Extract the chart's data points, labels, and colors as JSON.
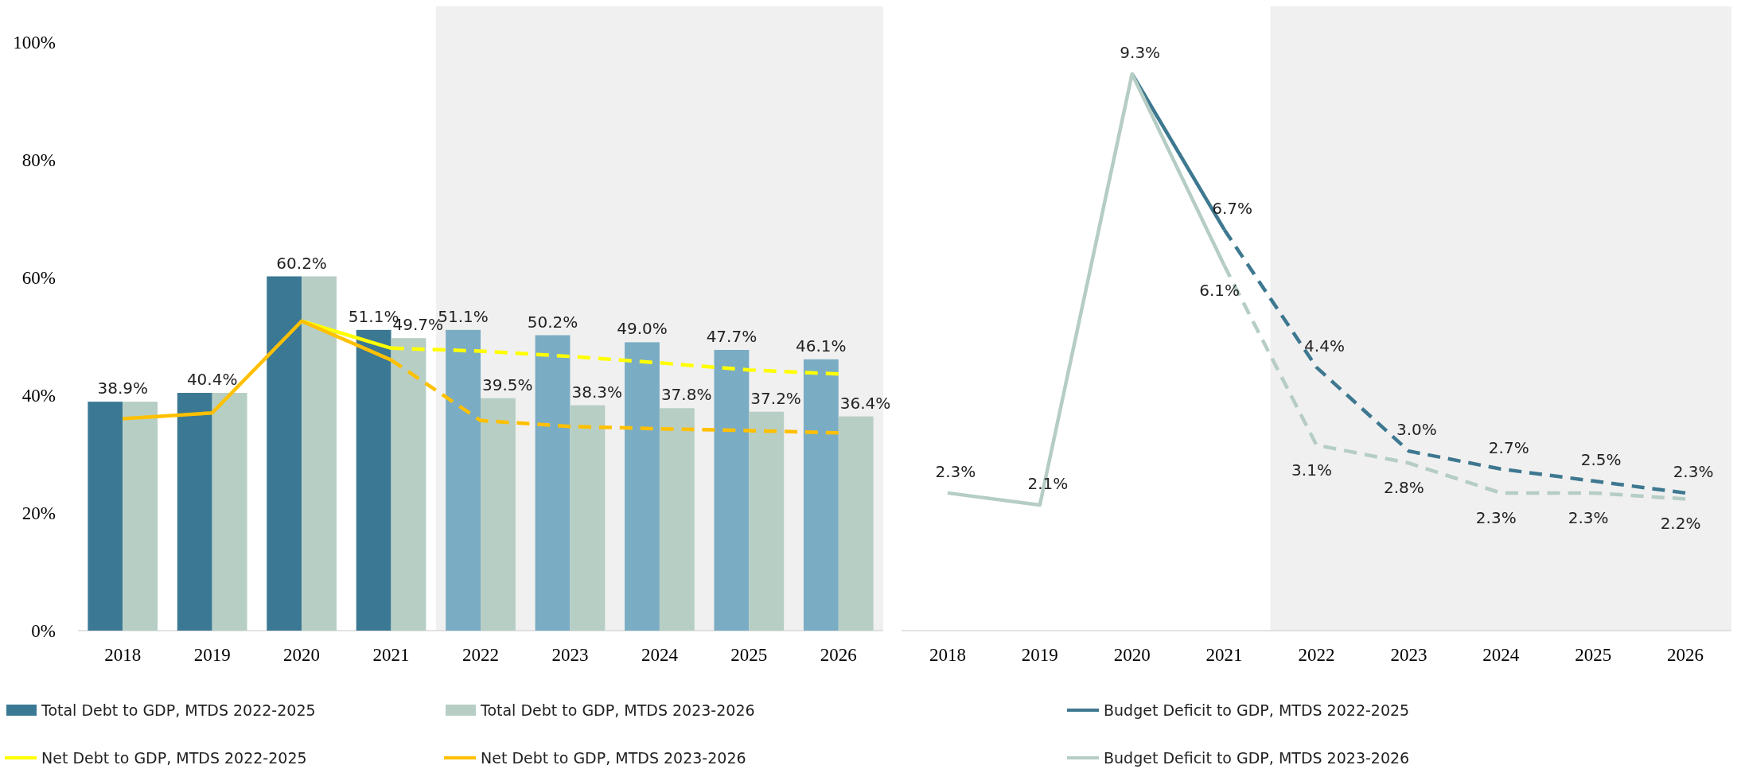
{
  "chart_data": [
    {
      "type": "bar",
      "categories": [
        "2018",
        "2019",
        "2020",
        "2021",
        "2022",
        "2023",
        "2024",
        "2025",
        "2026"
      ],
      "series": [
        {
          "name": "Total Debt to GDP, MTDS 2022-2025",
          "colors": [
            "#3b7893",
            "#3b7893",
            "#3b7893",
            "#3b7893",
            "#7aacc4",
            "#7aacc4",
            "#7aacc4",
            "#7aacc4",
            "#7aacc4"
          ],
          "values": [
            38.9,
            40.4,
            60.2,
            51.1,
            51.1,
            50.2,
            49.0,
            47.7,
            46.1
          ],
          "value_labels": [
            "38.9%",
            "40.4%",
            "60.2%",
            "51.1%",
            "51.1%",
            "50.2%",
            "49.0%",
            "47.7%",
            "46.1%"
          ]
        },
        {
          "name": "Total Debt to GDP, MTDS 2023-2026",
          "color": "#b7cec5",
          "values": [
            38.9,
            40.4,
            60.2,
            49.7,
            39.5,
            38.3,
            37.8,
            37.2,
            36.4
          ],
          "value_labels": [
            null,
            null,
            null,
            "49.7%",
            "39.5%",
            "38.3%",
            "37.8%",
            "37.2%",
            "36.4%"
          ]
        },
        {
          "type": "line",
          "name": "Net Debt to GDP, MTDS 2022-2025",
          "color": "#ffff00",
          "line_style": "solid",
          "values": [
            null,
            null,
            52.6,
            48,
            null,
            null,
            null,
            null,
            null
          ]
        },
        {
          "type": "line",
          "color": "#ffff00",
          "line_style": "dashed",
          "values": [
            null,
            null,
            null,
            48,
            47.5,
            46.6,
            45.5,
            44.3,
            43.6
          ]
        },
        {
          "type": "line",
          "name": "Net Debt to GDP, MTDS 2023-2026",
          "color": "#ffc000",
          "line_style": "solid",
          "values": [
            36,
            37,
            52.6,
            46,
            null,
            null,
            null,
            null,
            null
          ]
        },
        {
          "type": "line",
          "color": "#ffc000",
          "line_style": "dashed",
          "values": [
            null,
            null,
            null,
            46,
            35.7,
            34.7,
            34.3,
            34,
            33.6
          ]
        }
      ],
      "ylim": [
        0,
        100
      ],
      "yticks": [
        {
          "value": 0,
          "label": "0%"
        },
        {
          "value": 20,
          "label": "20%"
        },
        {
          "value": 40,
          "label": "40%"
        },
        {
          "value": 60,
          "label": "60%"
        },
        {
          "value": 80,
          "label": "80%"
        },
        {
          "value": 100,
          "label": "100%"
        }
      ],
      "bands": [
        {
          "axis": "x",
          "from": "2022",
          "to": "2026",
          "color": "#f0f0f0"
        }
      ],
      "legend": "bottom"
    },
    {
      "type": "line",
      "categories": [
        "2018",
        "2019",
        "2020",
        "2021",
        "2022",
        "2023",
        "2024",
        "2025",
        "2026"
      ],
      "series": [
        {
          "name": "Budget Deficit to GDP, MTDS 2022-2025",
          "color": "#3e7890",
          "line_style": "solid",
          "values": [
            null,
            null,
            9.3,
            6.7,
            null,
            null,
            null,
            null,
            null
          ],
          "value_labels": [
            null,
            null,
            null,
            "6.7%",
            null,
            null,
            null,
            null,
            null
          ]
        },
        {
          "color": "#3e7890",
          "line_style": "dashed",
          "values": [
            null,
            null,
            null,
            6.7,
            4.4,
            3.0,
            2.7,
            2.5,
            2.3
          ],
          "value_labels": [
            null,
            null,
            null,
            null,
            "4.4%",
            "3.0%",
            "2.7%",
            "2.5%",
            "2.3%"
          ]
        },
        {
          "name": "Budget Deficit to GDP, MTDS 2023-2026",
          "color": "#b5cdc4",
          "line_style": "solid",
          "values": [
            2.3,
            2.1,
            9.3,
            6.1,
            null,
            null,
            null,
            null,
            null
          ],
          "value_labels": [
            "2.3%",
            "2.1%",
            "9.3%",
            "6.1%",
            null,
            null,
            null,
            null,
            null
          ]
        },
        {
          "color": "#b5cdc4",
          "line_style": "dashed",
          "values": [
            null,
            null,
            null,
            6.1,
            3.1,
            2.8,
            2.3,
            2.3,
            2.2
          ],
          "value_labels": [
            null,
            null,
            null,
            null,
            "3.1%",
            "2.8%",
            "2.3%",
            "2.3%",
            "2.2%"
          ]
        }
      ],
      "tick_labels": "x",
      "bands": [
        {
          "axis": "x",
          "from": "2022",
          "to": "2026",
          "color": "#f0f0f0"
        }
      ],
      "legend": "bottom"
    }
  ]
}
